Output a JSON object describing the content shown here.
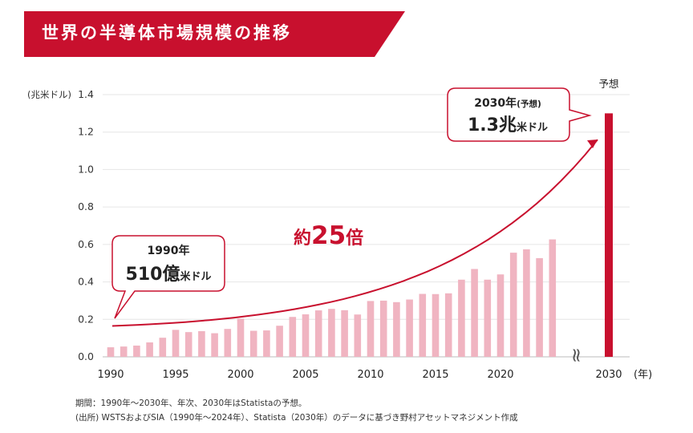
{
  "title": "世界の半導体市場規模の推移",
  "colors": {
    "accent": "#c8102e",
    "bar_actual": "#f0b4c1",
    "grid": "#e6e6e6"
  },
  "chart_data": {
    "type": "bar",
    "ylabel": "(兆米ドル)",
    "xlabel": "(年)",
    "ylim": [
      0,
      1.4
    ],
    "yticks": [
      "0.0",
      "0.2",
      "0.4",
      "0.6",
      "0.8",
      "1.0",
      "1.2",
      "1.4"
    ],
    "xticks": [
      "1990",
      "1995",
      "2000",
      "2005",
      "2010",
      "2015",
      "2020"
    ],
    "x_forecast_tick": "2030",
    "grid": true,
    "categories": [
      1990,
      1991,
      1992,
      1993,
      1994,
      1995,
      1996,
      1997,
      1998,
      1999,
      2000,
      2001,
      2002,
      2003,
      2004,
      2005,
      2006,
      2007,
      2008,
      2009,
      2010,
      2011,
      2012,
      2013,
      2014,
      2015,
      2016,
      2017,
      2018,
      2019,
      2020,
      2021,
      2022,
      2023,
      2024
    ],
    "values": [
      0.051,
      0.055,
      0.06,
      0.077,
      0.102,
      0.144,
      0.132,
      0.137,
      0.126,
      0.149,
      0.204,
      0.139,
      0.141,
      0.166,
      0.213,
      0.227,
      0.248,
      0.256,
      0.249,
      0.226,
      0.298,
      0.3,
      0.292,
      0.306,
      0.336,
      0.335,
      0.339,
      0.412,
      0.469,
      0.412,
      0.44,
      0.556,
      0.574,
      0.527,
      0.627
    ],
    "forecast": {
      "year": 2030,
      "label": "予想",
      "value": 1.3
    },
    "annotations": {
      "start": {
        "line1": "1990年",
        "value": "510億",
        "unit": "米ドル"
      },
      "end": {
        "line1": "2030年",
        "line1_suffix": "(予想)",
        "value": "1.3兆",
        "unit": "米ドル"
      },
      "growth": {
        "prefix": "約",
        "number": "25",
        "suffix": "倍"
      }
    },
    "axis_break_glyph": "≈"
  },
  "footnotes": [
    "期間：1990年～2030年、年次、2030年はStatistaの予想。",
    "(出所) WSTSおよびSIA（1990年～2024年）、Statista（2030年）のデータに基づき野村アセットマネジメント作成"
  ]
}
